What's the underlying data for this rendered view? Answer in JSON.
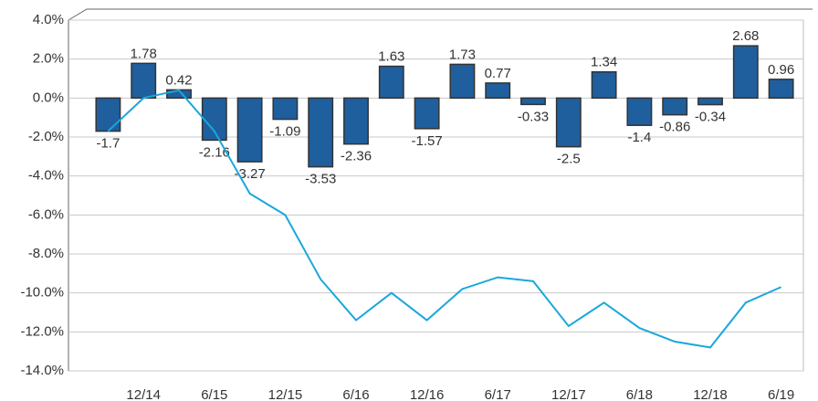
{
  "chart_data": {
    "type": "bar",
    "categories": [
      null,
      "12/14",
      null,
      "6/15",
      null,
      "12/15",
      null,
      "6/16",
      null,
      "12/16",
      null,
      "6/17",
      null,
      "12/17",
      null,
      "6/18",
      null,
      "12/18",
      null,
      "6/19"
    ],
    "series": [
      {
        "type": "bar",
        "color": "#1f5f9e",
        "values": [
          -1.7,
          1.78,
          0.42,
          -2.16,
          -3.27,
          -1.09,
          -3.53,
          -2.36,
          1.63,
          -1.57,
          1.73,
          0.77,
          -0.33,
          -2.5,
          1.34,
          -1.4,
          -0.86,
          -0.34,
          2.68,
          0.96
        ]
      },
      {
        "type": "line",
        "color": "#1aa7dc",
        "values": [
          -1.7,
          0.0,
          0.4,
          -1.7,
          -4.9,
          -6.0,
          -9.3,
          -11.4,
          -10.0,
          -11.4,
          -9.8,
          -9.2,
          -9.4,
          -11.7,
          -10.5,
          -11.8,
          -12.5,
          -12.8,
          -10.5,
          -9.7
        ]
      }
    ],
    "ylim": [
      -14,
      4
    ],
    "yticks": [
      {
        "value": -14,
        "label": "-14.0%"
      },
      {
        "value": -12,
        "label": "-12.0%"
      },
      {
        "value": -10,
        "label": "-10.0%"
      },
      {
        "value": -8,
        "label": "-8.0%"
      },
      {
        "value": -6,
        "label": "-6.0%"
      },
      {
        "value": -4,
        "label": "-4.0%"
      },
      {
        "value": -2,
        "label": "-2.0%"
      },
      {
        "value": 0,
        "label": "0.0%"
      },
      {
        "value": 2,
        "label": "2.0%"
      },
      {
        "value": 4,
        "label": "4.0%"
      }
    ],
    "grid": true
  }
}
